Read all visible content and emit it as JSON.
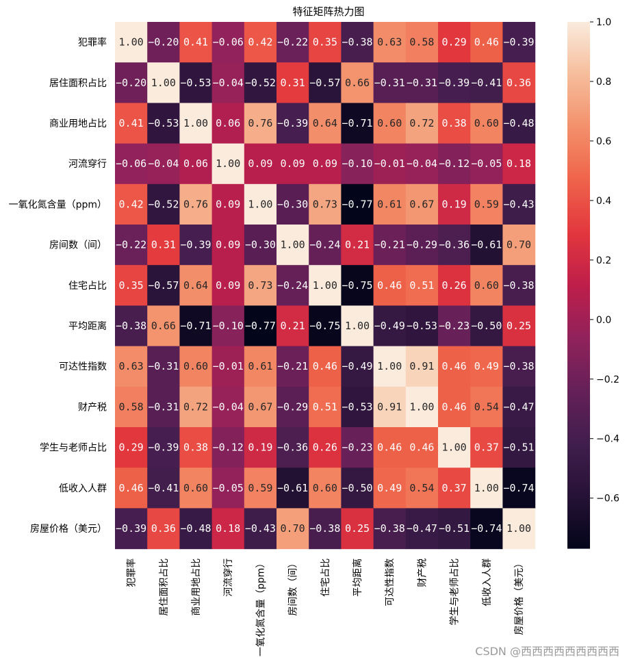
{
  "chart_data": {
    "type": "heatmap",
    "title": "特征矩阵热力图",
    "labels": [
      "犯罪率",
      "居住面积占比",
      "商业用地占比",
      "河流穿行",
      "一氧化氮含量（ppm）",
      "房间数（间）",
      "住宅占比",
      "平均距离",
      "可达性指数",
      "财产税",
      "学生与老师占比",
      "低收入人群",
      "房屋价格（美元）"
    ],
    "matrix": [
      [
        1.0,
        -0.2,
        0.41,
        -0.06,
        0.42,
        -0.22,
        0.35,
        -0.38,
        0.63,
        0.58,
        0.29,
        0.46,
        -0.39
      ],
      [
        -0.2,
        1.0,
        -0.53,
        -0.04,
        -0.52,
        0.31,
        -0.57,
        0.66,
        -0.31,
        -0.31,
        -0.39,
        -0.41,
        0.36
      ],
      [
        0.41,
        -0.53,
        1.0,
        0.06,
        0.76,
        -0.39,
        0.64,
        -0.71,
        0.6,
        0.72,
        0.38,
        0.6,
        -0.48
      ],
      [
        -0.06,
        -0.04,
        0.06,
        1.0,
        0.09,
        0.09,
        0.09,
        -0.1,
        -0.01,
        -0.04,
        -0.12,
        -0.05,
        0.18
      ],
      [
        0.42,
        -0.52,
        0.76,
        0.09,
        1.0,
        -0.3,
        0.73,
        -0.77,
        0.61,
        0.67,
        0.19,
        0.59,
        -0.43
      ],
      [
        -0.22,
        0.31,
        -0.39,
        0.09,
        -0.3,
        1.0,
        -0.24,
        0.21,
        -0.21,
        -0.29,
        -0.36,
        -0.61,
        0.7
      ],
      [
        0.35,
        -0.57,
        0.64,
        0.09,
        0.73,
        -0.24,
        1.0,
        -0.75,
        0.46,
        0.51,
        0.26,
        0.6,
        -0.38
      ],
      [
        -0.38,
        0.66,
        -0.71,
        -0.1,
        -0.77,
        0.21,
        -0.75,
        1.0,
        -0.49,
        -0.53,
        -0.23,
        -0.5,
        0.25
      ],
      [
        0.63,
        -0.31,
        0.6,
        -0.01,
        0.61,
        -0.21,
        0.46,
        -0.49,
        1.0,
        0.91,
        0.46,
        0.49,
        -0.38
      ],
      [
        0.58,
        -0.31,
        0.72,
        -0.04,
        0.67,
        -0.29,
        0.51,
        -0.53,
        0.91,
        1.0,
        0.46,
        0.54,
        -0.47
      ],
      [
        0.29,
        -0.39,
        0.38,
        -0.12,
        0.19,
        -0.36,
        0.26,
        -0.23,
        0.46,
        0.46,
        1.0,
        0.37,
        -0.51
      ],
      [
        0.46,
        -0.41,
        0.6,
        -0.05,
        0.59,
        -0.61,
        0.6,
        -0.5,
        0.49,
        0.54,
        0.37,
        1.0,
        -0.74
      ],
      [
        -0.39,
        0.36,
        -0.48,
        0.18,
        -0.43,
        0.7,
        -0.38,
        0.25,
        -0.38,
        -0.47,
        -0.51,
        -0.74,
        1.0
      ]
    ],
    "vmin": -0.77,
    "vmax": 1.0,
    "colormap": "rocket",
    "colorbar_ticks": [
      1.0,
      0.8,
      0.6,
      0.4,
      0.2,
      0.0,
      -0.2,
      -0.4,
      -0.6
    ],
    "colorbar_tick_labels": [
      "1.0",
      "0.8",
      "0.6",
      "0.4",
      "0.2",
      "0.0",
      "−0.2",
      "−0.4",
      "−0.6"
    ],
    "annotation_format": "0.00",
    "colorbar_position": "right"
  },
  "watermark": "CSDN @西西西西西西西西西"
}
